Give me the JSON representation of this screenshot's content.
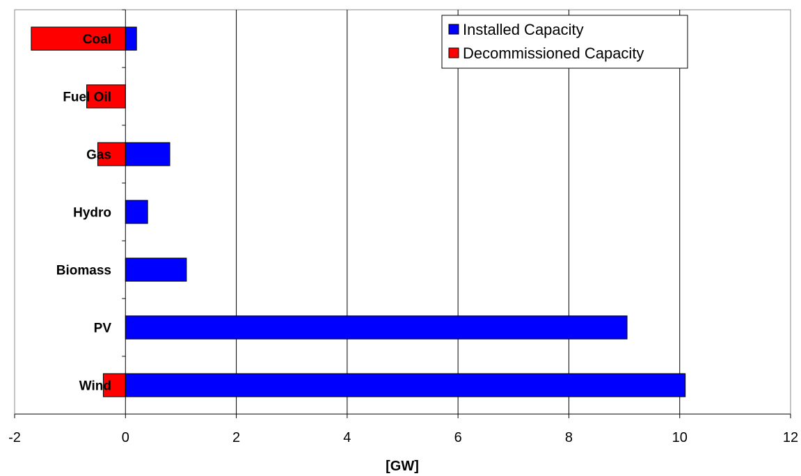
{
  "chart_data": {
    "type": "bar",
    "orientation": "horizontal",
    "categories": [
      "Coal",
      "Fuel Oil",
      "Gas",
      "Hydro",
      "Biomass",
      "PV",
      "Wind"
    ],
    "series": [
      {
        "name": "Installed Capacity",
        "color": "#0000ff",
        "values": [
          0.2,
          0,
          0.8,
          0.4,
          1.1,
          9.05,
          10.1
        ]
      },
      {
        "name": "Decommissioned Capacity",
        "color": "#ff0000",
        "values": [
          -1.7,
          -0.7,
          -0.5,
          0,
          0,
          0,
          -0.4
        ]
      }
    ],
    "xlabel": "[GW]",
    "ylabel": "",
    "title": "",
    "xlim": [
      -2,
      12
    ],
    "xticks": [
      -2,
      0,
      2,
      4,
      6,
      8,
      10,
      12
    ],
    "grid": "vertical",
    "legend": "top-right"
  }
}
